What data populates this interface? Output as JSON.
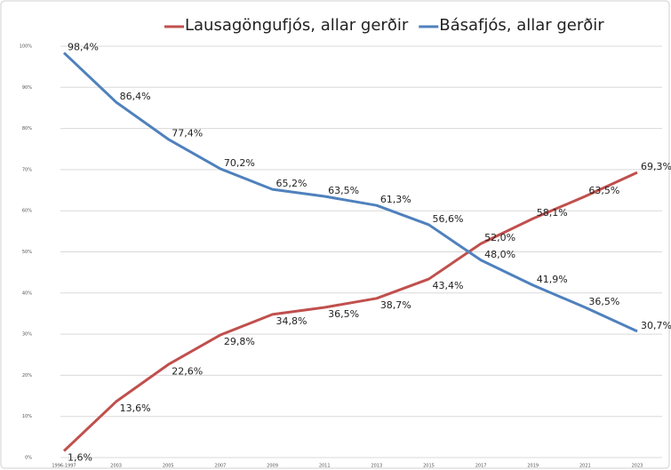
{
  "chart_data": {
    "type": "line",
    "categories": [
      "1996-1997",
      "2003",
      "2005",
      "2007",
      "2009",
      "2011",
      "2013",
      "2015",
      "2017",
      "2019",
      "2021",
      "2023"
    ],
    "series": [
      {
        "name": "Lausagöngufjós, allar gerðir",
        "color": "#c0504d",
        "values": [
          1.6,
          13.6,
          22.6,
          29.8,
          34.8,
          36.5,
          38.7,
          43.4,
          52.0,
          58.1,
          63.5,
          69.3
        ],
        "value_labels": [
          "1,6%",
          "13,6%",
          "22,6%",
          "29,8%",
          "34,8%",
          "36,5%",
          "38,7%",
          "43,4%",
          "52,0%",
          "58,1%",
          "63,5%",
          "69,3%"
        ]
      },
      {
        "name": "Básafjós, allar gerðir",
        "color": "#4f81bd",
        "values": [
          98.4,
          86.4,
          77.4,
          70.2,
          65.2,
          63.5,
          61.3,
          56.6,
          48.0,
          41.9,
          36.5,
          30.7
        ],
        "value_labels": [
          "98,4%",
          "86,4%",
          "77,4%",
          "70,2%",
          "65,2%",
          "63,5%",
          "61,3%",
          "56,6%",
          "48,0%",
          "41,9%",
          "36,5%",
          "30,7%"
        ]
      }
    ],
    "ylim": [
      0,
      100
    ],
    "yticks": [
      {
        "value": 0,
        "label": "0%"
      },
      {
        "value": 10,
        "label": "10%"
      },
      {
        "value": 20,
        "label": "20%"
      },
      {
        "value": 30,
        "label": "30%"
      },
      {
        "value": 40,
        "label": "40%"
      },
      {
        "value": 50,
        "label": "50%"
      },
      {
        "value": 60,
        "label": "60%"
      },
      {
        "value": 70,
        "label": "70%"
      },
      {
        "value": 80,
        "label": "80%"
      },
      {
        "value": 90,
        "label": "90%"
      },
      {
        "value": 100,
        "label": "100%"
      }
    ],
    "grid": true,
    "legend": "top"
  }
}
